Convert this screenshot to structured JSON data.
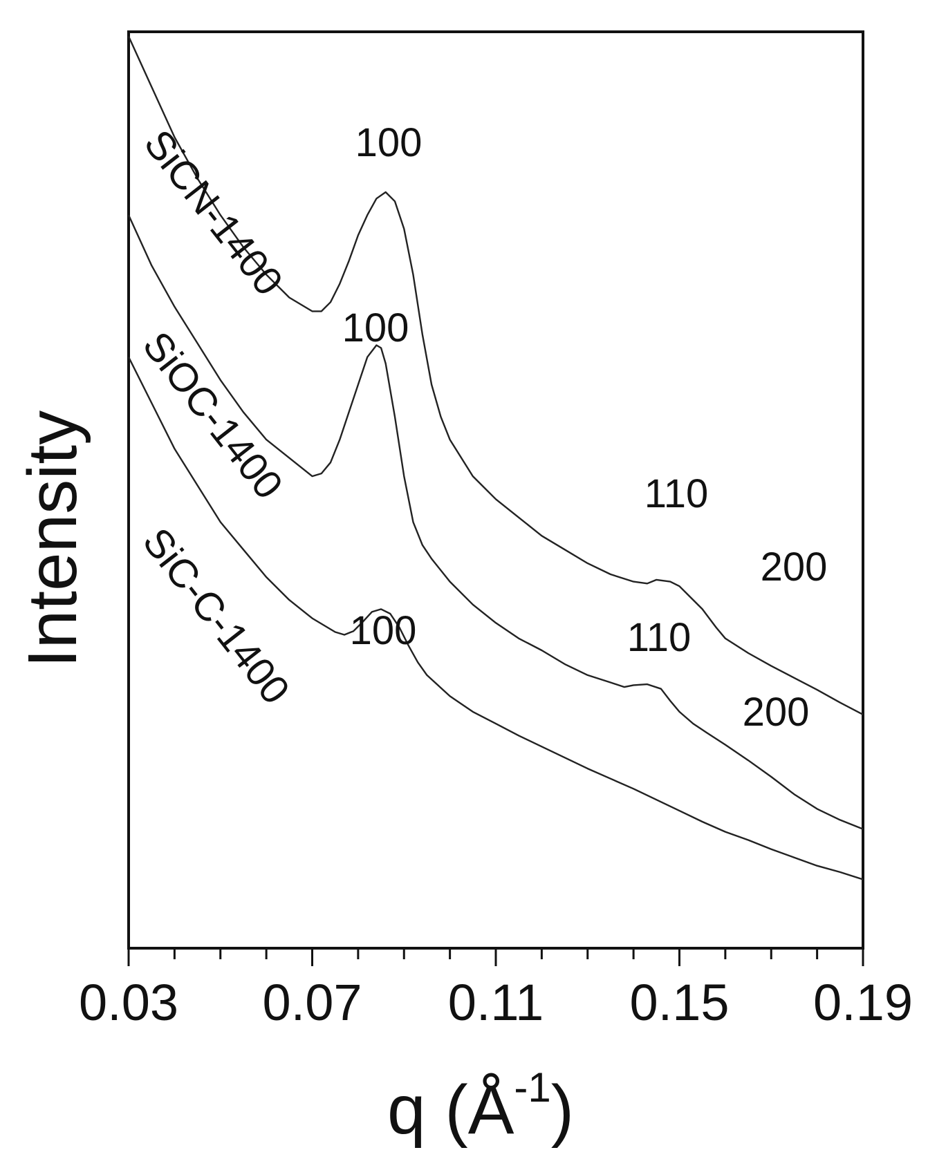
{
  "chart_data": {
    "type": "line",
    "xlabel": "q (Å⁻¹)",
    "xlabel_parts": {
      "main": "q (",
      "unit": "Å",
      "exp": "-1",
      "close": ")"
    },
    "ylabel": "Intensity",
    "xlim": [
      0.03,
      0.19
    ],
    "x_ticks": [
      0.03,
      0.07,
      0.11,
      0.15,
      0.19
    ],
    "x_tick_labels": [
      "0.03",
      "0.07",
      "0.11",
      "0.15",
      "0.19"
    ],
    "x_minor_step": 0.01,
    "y_scale": "arbitrary units, stacked",
    "ylim": [
      0,
      100
    ],
    "grid": false,
    "series": [
      {
        "name": "SiCN-1400",
        "points": [
          [
            0.03,
            99.5
          ],
          [
            0.035,
            94.0
          ],
          [
            0.04,
            88.5
          ],
          [
            0.045,
            84.0
          ],
          [
            0.05,
            80.0
          ],
          [
            0.055,
            76.5
          ],
          [
            0.06,
            73.5
          ],
          [
            0.065,
            71.0
          ],
          [
            0.07,
            69.5
          ],
          [
            0.072,
            69.5
          ],
          [
            0.074,
            70.5
          ],
          [
            0.076,
            72.5
          ],
          [
            0.078,
            75.0
          ],
          [
            0.08,
            77.8
          ],
          [
            0.082,
            80.0
          ],
          [
            0.084,
            81.8
          ],
          [
            0.086,
            82.5
          ],
          [
            0.088,
            81.5
          ],
          [
            0.09,
            78.5
          ],
          [
            0.092,
            73.5
          ],
          [
            0.094,
            67.0
          ],
          [
            0.096,
            61.5
          ],
          [
            0.098,
            58.0
          ],
          [
            0.1,
            55.5
          ],
          [
            0.105,
            51.5
          ],
          [
            0.11,
            49.0
          ],
          [
            0.115,
            47.0
          ],
          [
            0.12,
            45.0
          ],
          [
            0.125,
            43.5
          ],
          [
            0.13,
            42.0
          ],
          [
            0.135,
            40.8
          ],
          [
            0.14,
            40.0
          ],
          [
            0.143,
            39.8
          ],
          [
            0.145,
            40.2
          ],
          [
            0.148,
            40.0
          ],
          [
            0.15,
            39.5
          ],
          [
            0.152,
            38.5
          ],
          [
            0.155,
            37.0
          ],
          [
            0.158,
            35.0
          ],
          [
            0.16,
            33.8
          ],
          [
            0.165,
            32.2
          ],
          [
            0.17,
            30.8
          ],
          [
            0.175,
            29.5
          ],
          [
            0.18,
            28.2
          ],
          [
            0.185,
            26.8
          ],
          [
            0.19,
            25.5
          ]
        ],
        "peaks": [
          {
            "label": "100",
            "q": 0.086
          },
          {
            "label": "110",
            "q": 0.145
          },
          {
            "label": "200",
            "q": 0.166
          }
        ]
      },
      {
        "name": "SiOC-1400",
        "points": [
          [
            0.03,
            80.0
          ],
          [
            0.035,
            74.5
          ],
          [
            0.04,
            70.0
          ],
          [
            0.045,
            66.0
          ],
          [
            0.05,
            62.0
          ],
          [
            0.055,
            58.5
          ],
          [
            0.06,
            55.5
          ],
          [
            0.065,
            53.5
          ],
          [
            0.07,
            51.5
          ],
          [
            0.072,
            51.8
          ],
          [
            0.074,
            53.0
          ],
          [
            0.076,
            55.5
          ],
          [
            0.078,
            58.5
          ],
          [
            0.08,
            61.5
          ],
          [
            0.082,
            64.5
          ],
          [
            0.084,
            65.8
          ],
          [
            0.085,
            65.5
          ],
          [
            0.086,
            63.8
          ],
          [
            0.088,
            58.0
          ],
          [
            0.09,
            51.5
          ],
          [
            0.092,
            46.5
          ],
          [
            0.094,
            44.0
          ],
          [
            0.096,
            42.5
          ],
          [
            0.1,
            40.0
          ],
          [
            0.105,
            37.5
          ],
          [
            0.11,
            35.5
          ],
          [
            0.115,
            33.8
          ],
          [
            0.12,
            32.5
          ],
          [
            0.125,
            31.0
          ],
          [
            0.13,
            29.8
          ],
          [
            0.135,
            29.0
          ],
          [
            0.138,
            28.5
          ],
          [
            0.14,
            28.7
          ],
          [
            0.143,
            28.8
          ],
          [
            0.146,
            28.3
          ],
          [
            0.148,
            27.0
          ],
          [
            0.15,
            25.8
          ],
          [
            0.153,
            24.5
          ],
          [
            0.156,
            23.5
          ],
          [
            0.16,
            22.2
          ],
          [
            0.165,
            20.5
          ],
          [
            0.17,
            18.7
          ],
          [
            0.175,
            16.8
          ],
          [
            0.18,
            15.2
          ],
          [
            0.185,
            14.0
          ],
          [
            0.19,
            13.0
          ]
        ],
        "peaks": [
          {
            "label": "100",
            "q": 0.085
          },
          {
            "label": "110",
            "q": 0.141
          },
          {
            "label": "200",
            "q": 0.162
          }
        ]
      },
      {
        "name": "SiC-C-1400",
        "points": [
          [
            0.03,
            64.5
          ],
          [
            0.035,
            59.5
          ],
          [
            0.04,
            54.5
          ],
          [
            0.045,
            50.5
          ],
          [
            0.05,
            46.5
          ],
          [
            0.055,
            43.5
          ],
          [
            0.06,
            40.5
          ],
          [
            0.065,
            38.0
          ],
          [
            0.07,
            36.0
          ],
          [
            0.075,
            34.5
          ],
          [
            0.077,
            34.2
          ],
          [
            0.079,
            34.6
          ],
          [
            0.081,
            35.6
          ],
          [
            0.083,
            36.7
          ],
          [
            0.085,
            37.0
          ],
          [
            0.087,
            36.5
          ],
          [
            0.089,
            35.0
          ],
          [
            0.091,
            33.0
          ],
          [
            0.093,
            31.2
          ],
          [
            0.095,
            29.8
          ],
          [
            0.1,
            27.5
          ],
          [
            0.105,
            25.8
          ],
          [
            0.11,
            24.5
          ],
          [
            0.115,
            23.2
          ],
          [
            0.12,
            22.0
          ],
          [
            0.125,
            20.8
          ],
          [
            0.13,
            19.6
          ],
          [
            0.135,
            18.5
          ],
          [
            0.14,
            17.4
          ],
          [
            0.145,
            16.2
          ],
          [
            0.15,
            15.0
          ],
          [
            0.155,
            13.8
          ],
          [
            0.16,
            12.7
          ],
          [
            0.165,
            11.8
          ],
          [
            0.17,
            10.8
          ],
          [
            0.175,
            9.9
          ],
          [
            0.18,
            9.0
          ],
          [
            0.185,
            8.3
          ],
          [
            0.19,
            7.5
          ]
        ],
        "peaks": [
          {
            "label": "100",
            "q": 0.085
          }
        ]
      }
    ]
  }
}
